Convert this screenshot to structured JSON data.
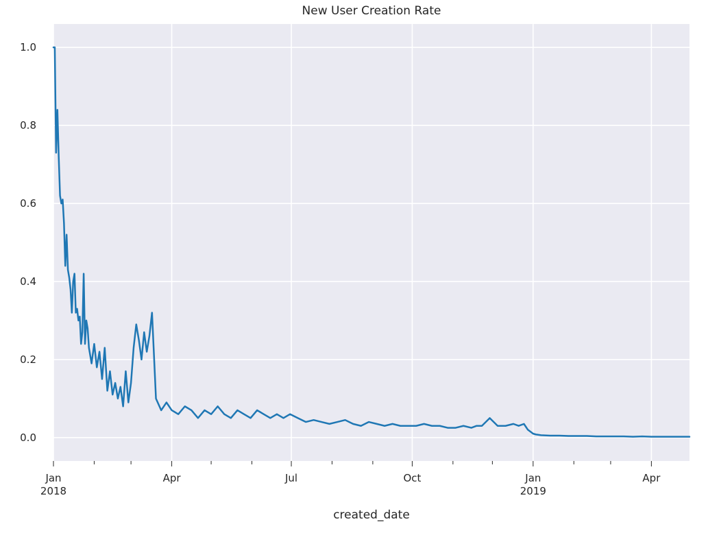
{
  "chart_data": {
    "type": "line",
    "title": "New User Creation Rate",
    "xlabel": "created_date",
    "ylabel": "",
    "xlim": [
      "2018-01-01",
      "2019-04-30"
    ],
    "ylim": [
      -0.06,
      1.06
    ],
    "yticks": [
      {
        "value": 0.0,
        "label": "0.0"
      },
      {
        "value": 0.2,
        "label": "0.2"
      },
      {
        "value": 0.4,
        "label": "0.4"
      },
      {
        "value": 0.6,
        "label": "0.6"
      },
      {
        "value": 0.8,
        "label": "0.8"
      },
      {
        "value": 1.0,
        "label": "1.0"
      }
    ],
    "xticks_major": [
      {
        "date": "2018-01-01",
        "label": "Jan",
        "sublabel": "2018"
      },
      {
        "date": "2018-04-01",
        "label": "Apr",
        "sublabel": ""
      },
      {
        "date": "2018-07-01",
        "label": "Jul",
        "sublabel": ""
      },
      {
        "date": "2018-10-01",
        "label": "Oct",
        "sublabel": ""
      },
      {
        "date": "2019-01-01",
        "label": "Jan",
        "sublabel": "2019"
      },
      {
        "date": "2019-04-01",
        "label": "Apr",
        "sublabel": ""
      }
    ],
    "xticks_minor": [
      "2018-02-01",
      "2018-03-01",
      "2018-05-01",
      "2018-06-01",
      "2018-08-01",
      "2018-09-01",
      "2018-11-01",
      "2018-12-01",
      "2019-02-01",
      "2019-03-01"
    ],
    "grid": true,
    "colors": {
      "background": "#eaeaf2",
      "grid": "#ffffff",
      "line": "#1f77b4",
      "text": "#262626"
    },
    "series": [
      {
        "x": [
          "2018-01-01",
          "2018-01-02",
          "2018-01-03",
          "2018-01-04",
          "2018-01-05",
          "2018-01-06",
          "2018-01-07",
          "2018-01-08",
          "2018-01-09",
          "2018-01-10",
          "2018-01-11",
          "2018-01-12",
          "2018-01-13",
          "2018-01-14",
          "2018-01-15",
          "2018-01-16",
          "2018-01-17",
          "2018-01-18",
          "2018-01-19",
          "2018-01-20",
          "2018-01-21",
          "2018-01-22",
          "2018-01-23",
          "2018-01-24",
          "2018-01-25",
          "2018-01-26",
          "2018-01-27",
          "2018-01-28",
          "2018-01-30",
          "2018-02-01",
          "2018-02-03",
          "2018-02-05",
          "2018-02-07",
          "2018-02-09",
          "2018-02-11",
          "2018-02-13",
          "2018-02-15",
          "2018-02-17",
          "2018-02-19",
          "2018-02-21",
          "2018-02-23",
          "2018-02-25",
          "2018-02-27",
          "2018-03-01",
          "2018-03-03",
          "2018-03-05",
          "2018-03-07",
          "2018-03-09",
          "2018-03-11",
          "2018-03-13",
          "2018-03-15",
          "2018-03-17",
          "2018-03-20",
          "2018-03-24",
          "2018-03-28",
          "2018-04-01",
          "2018-04-06",
          "2018-04-11",
          "2018-04-16",
          "2018-04-21",
          "2018-04-26",
          "2018-05-01",
          "2018-05-06",
          "2018-05-11",
          "2018-05-16",
          "2018-05-21",
          "2018-05-26",
          "2018-05-31",
          "2018-06-05",
          "2018-06-10",
          "2018-06-15",
          "2018-06-20",
          "2018-06-25",
          "2018-06-30",
          "2018-07-06",
          "2018-07-12",
          "2018-07-18",
          "2018-07-24",
          "2018-07-30",
          "2018-08-05",
          "2018-08-11",
          "2018-08-17",
          "2018-08-23",
          "2018-08-29",
          "2018-09-04",
          "2018-09-10",
          "2018-09-16",
          "2018-09-22",
          "2018-09-28",
          "2018-10-04",
          "2018-10-10",
          "2018-10-16",
          "2018-10-22",
          "2018-10-28",
          "2018-11-03",
          "2018-11-09",
          "2018-11-15",
          "2018-11-19",
          "2018-11-23",
          "2018-11-29",
          "2018-12-05",
          "2018-12-11",
          "2018-12-17",
          "2018-12-21",
          "2018-12-25",
          "2018-12-28",
          "2019-01-01",
          "2019-01-03",
          "2019-01-07",
          "2019-01-14",
          "2019-01-21",
          "2019-01-28",
          "2019-02-04",
          "2019-02-11",
          "2019-02-18",
          "2019-02-25",
          "2019-03-04",
          "2019-03-11",
          "2019-03-18",
          "2019-03-25",
          "2019-04-01",
          "2019-04-08",
          "2019-04-15",
          "2019-04-22",
          "2019-04-30"
        ],
        "y": [
          1.0,
          1.0,
          0.73,
          0.84,
          0.72,
          0.62,
          0.6,
          0.61,
          0.55,
          0.44,
          0.52,
          0.43,
          0.41,
          0.38,
          0.32,
          0.4,
          0.42,
          0.32,
          0.33,
          0.3,
          0.31,
          0.24,
          0.27,
          0.42,
          0.24,
          0.3,
          0.28,
          0.23,
          0.19,
          0.24,
          0.18,
          0.22,
          0.15,
          0.23,
          0.12,
          0.17,
          0.11,
          0.14,
          0.1,
          0.13,
          0.08,
          0.17,
          0.09,
          0.14,
          0.23,
          0.29,
          0.25,
          0.2,
          0.27,
          0.22,
          0.26,
          0.32,
          0.1,
          0.07,
          0.09,
          0.07,
          0.06,
          0.08,
          0.07,
          0.05,
          0.07,
          0.06,
          0.08,
          0.06,
          0.05,
          0.07,
          0.06,
          0.05,
          0.07,
          0.06,
          0.05,
          0.06,
          0.05,
          0.06,
          0.05,
          0.04,
          0.045,
          0.04,
          0.035,
          0.04,
          0.045,
          0.035,
          0.03,
          0.04,
          0.035,
          0.03,
          0.035,
          0.03,
          0.03,
          0.03,
          0.035,
          0.03,
          0.03,
          0.025,
          0.025,
          0.03,
          0.025,
          0.03,
          0.03,
          0.05,
          0.03,
          0.03,
          0.035,
          0.03,
          0.035,
          0.02,
          0.01,
          0.008,
          0.006,
          0.005,
          0.005,
          0.004,
          0.004,
          0.004,
          0.003,
          0.003,
          0.003,
          0.003,
          0.002,
          0.003,
          0.002,
          0.002,
          0.002,
          0.002,
          0.002
        ]
      }
    ]
  }
}
